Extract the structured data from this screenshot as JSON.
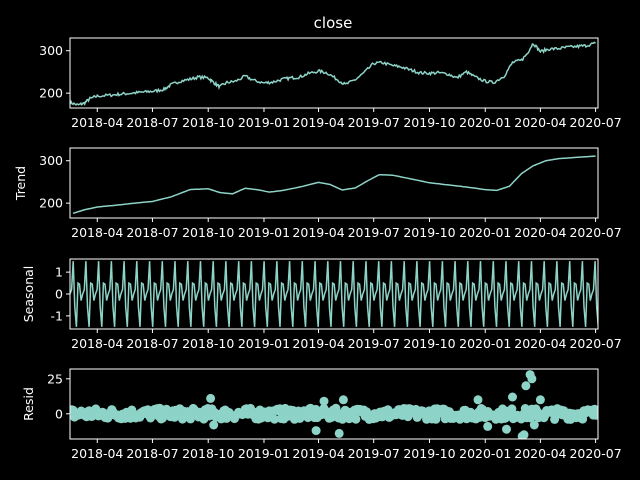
{
  "chart_data": {
    "type": "line",
    "title": "close",
    "color": "#8dd3c7",
    "background": "#000000",
    "grid": false,
    "x_range": [
      "2018-02-15",
      "2020-07-05"
    ],
    "x_ticks": [
      "2018-04",
      "2018-07",
      "2018-10",
      "2019-01",
      "2019-04",
      "2019-07",
      "2019-10",
      "2020-01",
      "2020-04",
      "2020-07"
    ],
    "x_tick_dates": [
      "2018-04-01",
      "2018-07-01",
      "2018-10-01",
      "2019-01-01",
      "2019-04-01",
      "2019-07-01",
      "2019-10-01",
      "2020-01-01",
      "2020-04-01",
      "2020-07-01"
    ],
    "panels": [
      {
        "name": "observed",
        "ylabel": "",
        "style": "line",
        "ylim": [
          165,
          330
        ],
        "y_ticks": [
          200,
          300
        ],
        "points": [
          [
            "2018-02-15",
            178
          ],
          [
            "2018-02-28",
            172
          ],
          [
            "2018-03-10",
            176
          ],
          [
            "2018-03-20",
            187
          ],
          [
            "2018-04-01",
            193
          ],
          [
            "2018-04-20",
            195
          ],
          [
            "2018-05-05",
            197
          ],
          [
            "2018-05-20",
            199
          ],
          [
            "2018-06-05",
            201
          ],
          [
            "2018-06-20",
            203
          ],
          [
            "2018-07-05",
            205
          ],
          [
            "2018-07-20",
            209
          ],
          [
            "2018-08-01",
            220
          ],
          [
            "2018-08-15",
            228
          ],
          [
            "2018-09-01",
            233
          ],
          [
            "2018-09-15",
            238
          ],
          [
            "2018-10-01",
            236
          ],
          [
            "2018-10-10",
            225
          ],
          [
            "2018-10-20",
            215
          ],
          [
            "2018-11-01",
            225
          ],
          [
            "2018-11-15",
            228
          ],
          [
            "2018-12-01",
            240
          ],
          [
            "2018-12-15",
            230
          ],
          [
            "2019-01-01",
            224
          ],
          [
            "2019-01-15",
            226
          ],
          [
            "2019-02-01",
            233
          ],
          [
            "2019-02-15",
            236
          ],
          [
            "2019-03-01",
            238
          ],
          [
            "2019-03-15",
            246
          ],
          [
            "2019-04-01",
            252
          ],
          [
            "2019-04-15",
            248
          ],
          [
            "2019-05-01",
            233
          ],
          [
            "2019-05-15",
            220
          ],
          [
            "2019-06-01",
            232
          ],
          [
            "2019-06-15",
            248
          ],
          [
            "2019-07-01",
            270
          ],
          [
            "2019-07-15",
            272
          ],
          [
            "2019-08-01",
            265
          ],
          [
            "2019-08-15",
            262
          ],
          [
            "2019-09-01",
            254
          ],
          [
            "2019-09-15",
            248
          ],
          [
            "2019-10-01",
            247
          ],
          [
            "2019-10-15",
            248
          ],
          [
            "2019-11-01",
            245
          ],
          [
            "2019-11-15",
            236
          ],
          [
            "2019-12-01",
            250
          ],
          [
            "2019-12-15",
            238
          ],
          [
            "2020-01-01",
            228
          ],
          [
            "2020-01-15",
            225
          ],
          [
            "2020-02-01",
            240
          ],
          [
            "2020-02-15",
            272
          ],
          [
            "2020-03-01",
            278
          ],
          [
            "2020-03-10",
            293
          ],
          [
            "2020-03-20",
            318
          ],
          [
            "2020-04-01",
            298
          ],
          [
            "2020-04-15",
            304
          ],
          [
            "2020-05-01",
            305
          ],
          [
            "2020-05-15",
            308
          ],
          [
            "2020-06-01",
            310
          ],
          [
            "2020-06-15",
            312
          ],
          [
            "2020-07-01",
            318
          ]
        ]
      },
      {
        "name": "trend",
        "ylabel": "Trend",
        "style": "line",
        "ylim": [
          165,
          330
        ],
        "y_ticks": [
          200,
          300
        ],
        "points": [
          [
            "2018-02-20",
            176
          ],
          [
            "2018-03-10",
            184
          ],
          [
            "2018-04-01",
            191
          ],
          [
            "2018-05-01",
            195
          ],
          [
            "2018-06-01",
            200
          ],
          [
            "2018-07-01",
            204
          ],
          [
            "2018-08-01",
            215
          ],
          [
            "2018-09-01",
            232
          ],
          [
            "2018-10-01",
            234
          ],
          [
            "2018-10-20",
            225
          ],
          [
            "2018-11-10",
            222
          ],
          [
            "2018-12-01",
            235
          ],
          [
            "2018-12-20",
            232
          ],
          [
            "2019-01-10",
            226
          ],
          [
            "2019-02-01",
            230
          ],
          [
            "2019-03-01",
            238
          ],
          [
            "2019-04-01",
            249
          ],
          [
            "2019-04-20",
            244
          ],
          [
            "2019-05-10",
            231
          ],
          [
            "2019-06-01",
            236
          ],
          [
            "2019-06-20",
            252
          ],
          [
            "2019-07-10",
            267
          ],
          [
            "2019-08-01",
            266
          ],
          [
            "2019-09-01",
            257
          ],
          [
            "2019-10-01",
            248
          ],
          [
            "2019-11-01",
            243
          ],
          [
            "2019-12-01",
            238
          ],
          [
            "2020-01-01",
            232
          ],
          [
            "2020-01-20",
            230
          ],
          [
            "2020-02-10",
            240
          ],
          [
            "2020-03-01",
            270
          ],
          [
            "2020-03-20",
            288
          ],
          [
            "2020-04-10",
            300
          ],
          [
            "2020-05-01",
            305
          ],
          [
            "2020-06-01",
            308
          ],
          [
            "2020-07-01",
            311
          ]
        ]
      },
      {
        "name": "seasonal",
        "ylabel": "Seasonal",
        "style": "oscillation",
        "ylim": [
          -1.6,
          1.6
        ],
        "y_ticks": [
          -1,
          0,
          1
        ],
        "period_days": 21,
        "peak_value": 1.5,
        "trough_value": -1.5,
        "mid_values": [
          0.2,
          -0.6,
          0.5,
          -0.3
        ]
      },
      {
        "name": "resid",
        "ylabel": "Resid",
        "style": "scatter",
        "ylim": [
          -18,
          32
        ],
        "y_ticks": [
          0,
          25
        ],
        "base_spread": 4,
        "outliers": [
          [
            "2018-10-05",
            11
          ],
          [
            "2018-10-10",
            -8
          ],
          [
            "2019-03-28",
            -12
          ],
          [
            "2019-04-10",
            9
          ],
          [
            "2019-05-05",
            -14
          ],
          [
            "2019-05-12",
            10
          ],
          [
            "2019-12-20",
            10
          ],
          [
            "2020-01-05",
            -9
          ],
          [
            "2020-02-05",
            -11
          ],
          [
            "2020-02-15",
            12
          ],
          [
            "2020-03-08",
            20
          ],
          [
            "2020-03-15",
            28
          ],
          [
            "2020-03-18",
            25
          ],
          [
            "2020-03-02",
            -16
          ],
          [
            "2020-03-05",
            -15
          ],
          [
            "2020-03-22",
            -8
          ],
          [
            "2020-04-01",
            10
          ]
        ]
      }
    ]
  }
}
